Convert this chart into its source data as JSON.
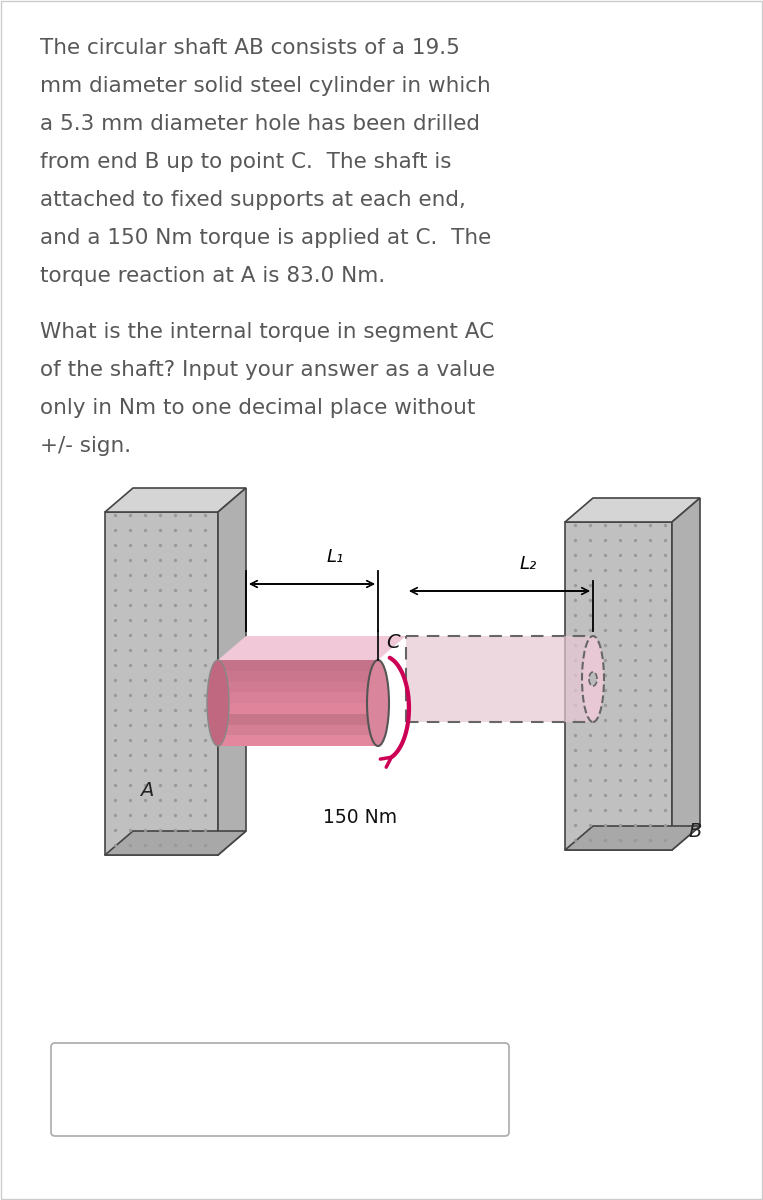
{
  "p1_lines": [
    "The circular shaft AB consists of a 19.5",
    "mm diameter solid steel cylinder in which",
    "a 5.3 mm diameter hole has been drilled",
    "from end B up to point C.  The shaft is",
    "attached to fixed supports at each end,",
    "and a 150 Nm torque is applied at C.  The",
    "torque reaction at A is 83.0 Nm."
  ],
  "p2_lines": [
    "What is the internal torque in segment AC",
    "of the shaft? Input your answer as a value",
    "only in Nm to one decimal place without",
    "+/- sign."
  ],
  "bg_color": "#ffffff",
  "text_color": "#585858",
  "font_size_body": 15.5,
  "label_A": "A",
  "label_B": "B",
  "label_C": "C",
  "label_L1": "L₁",
  "label_L2": "L₂",
  "label_torque": "150 Nm",
  "wall_face_color": "#c0c0c0",
  "wall_top_color": "#d5d5d5",
  "wall_side_color": "#b0b0b0",
  "wall_bot_color": "#a8a8a8",
  "shaft_highlight": "#f0c8d8",
  "shaft_mid": "#d9869c",
  "shaft_dark": "#c06880",
  "shaft_end": "#b05070",
  "hollow_fill": "#e8c8d4",
  "torque_color": "#cc0055",
  "dim_color": "#111111"
}
